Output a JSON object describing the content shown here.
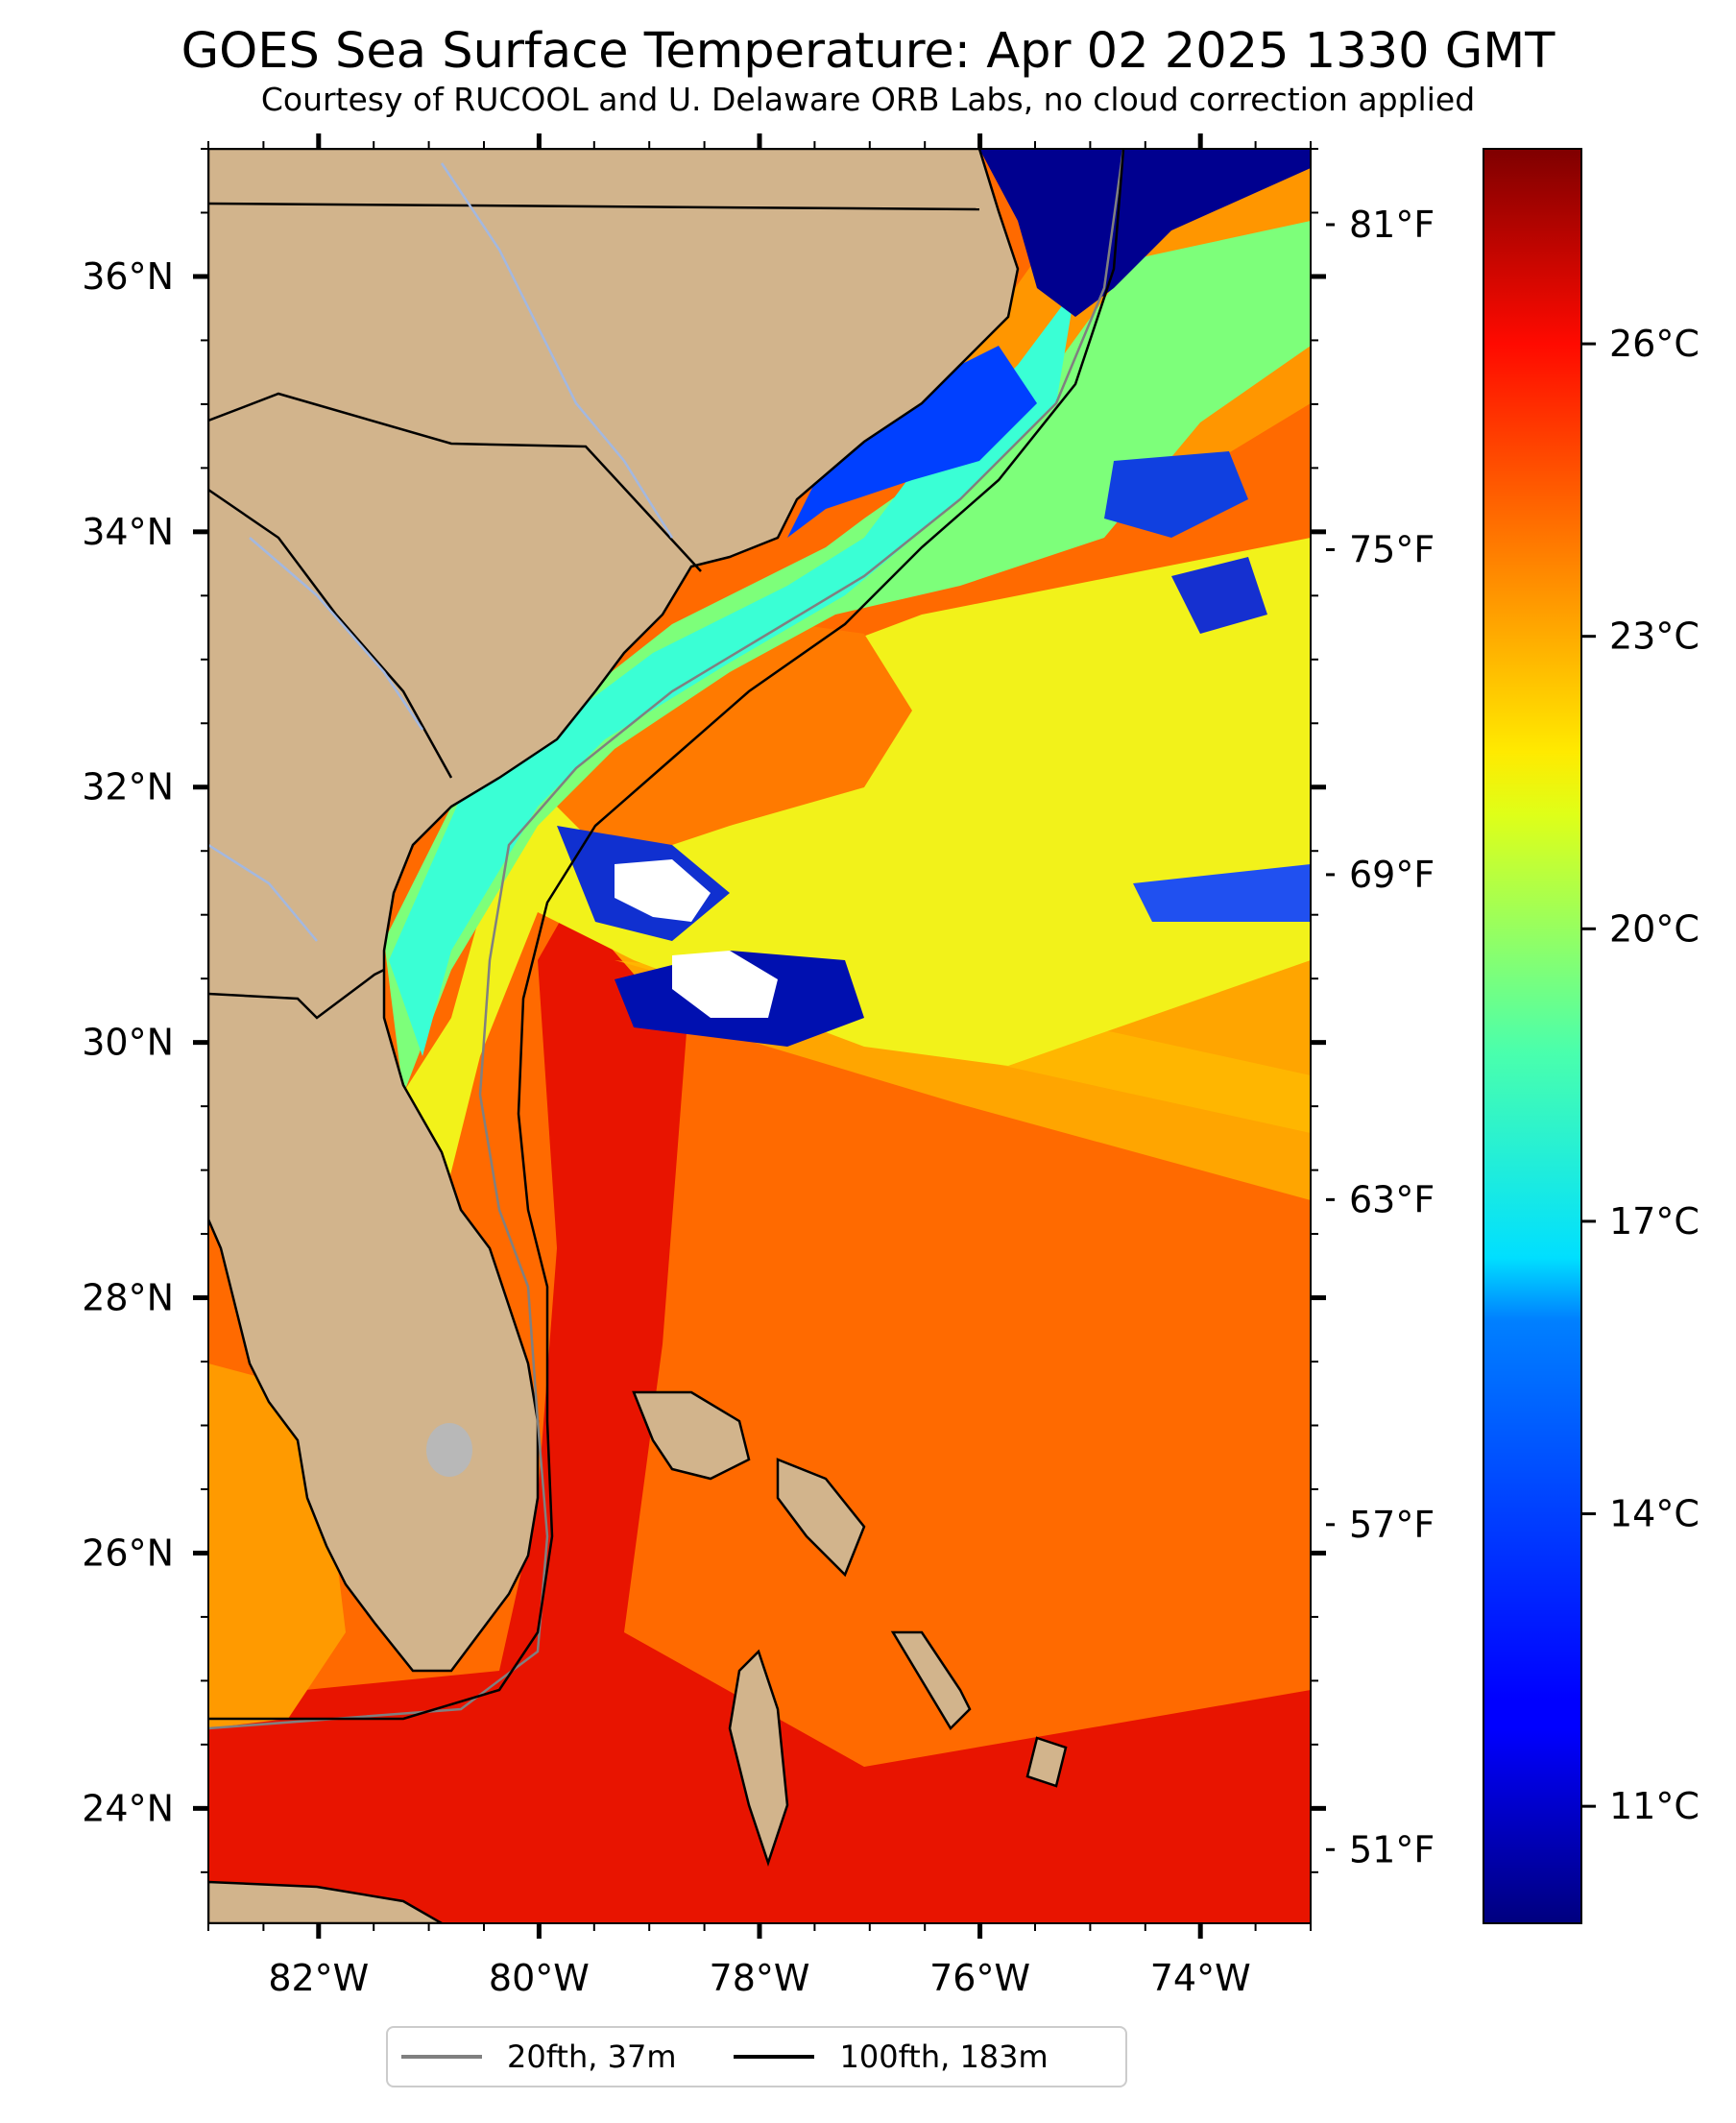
{
  "title": "GOES Sea Surface Temperature: Apr 02 2025 1330 GMT",
  "subtitle": "Courtesy of RUCOOL and U. Delaware ORB Labs, no cloud correction applied",
  "map": {
    "extent": {
      "lon_min": -83,
      "lon_max": -73,
      "lat_min": 23.1,
      "lat_max": 37.0
    },
    "lon_labels": [
      "82°W",
      "80°W",
      "78°W",
      "76°W",
      "74°W"
    ],
    "lon_values": [
      -82,
      -80,
      -78,
      -76,
      -74
    ],
    "lat_labels": [
      "24°N",
      "26°N",
      "28°N",
      "30°N",
      "32°N",
      "34°N",
      "36°N"
    ],
    "lat_values": [
      24,
      26,
      28,
      30,
      32,
      34,
      36
    ],
    "land_color": "#d2b48c",
    "cloud_color": "#ffffff",
    "lake_color": "#b8b8b8",
    "river_color": "#a3b8e0"
  },
  "fahrenheit_axis": {
    "labels": [
      "81°F",
      "75°F",
      "69°F",
      "63°F",
      "57°F",
      "51°F"
    ],
    "values": [
      81,
      75,
      69,
      63,
      57,
      51
    ]
  },
  "colorbar": {
    "colormap": "jet",
    "range_c": [
      9.8,
      28.0
    ],
    "labels": [
      "26°C",
      "23°C",
      "20°C",
      "17°C",
      "14°C",
      "11°C"
    ],
    "values": [
      26,
      23,
      20,
      17,
      14,
      11
    ]
  },
  "legend": {
    "placement": "bottom-center",
    "items": [
      {
        "label": "20fth, 37m",
        "color": "#808080"
      },
      {
        "label": "100fth, 183m",
        "color": "#000000"
      }
    ]
  }
}
